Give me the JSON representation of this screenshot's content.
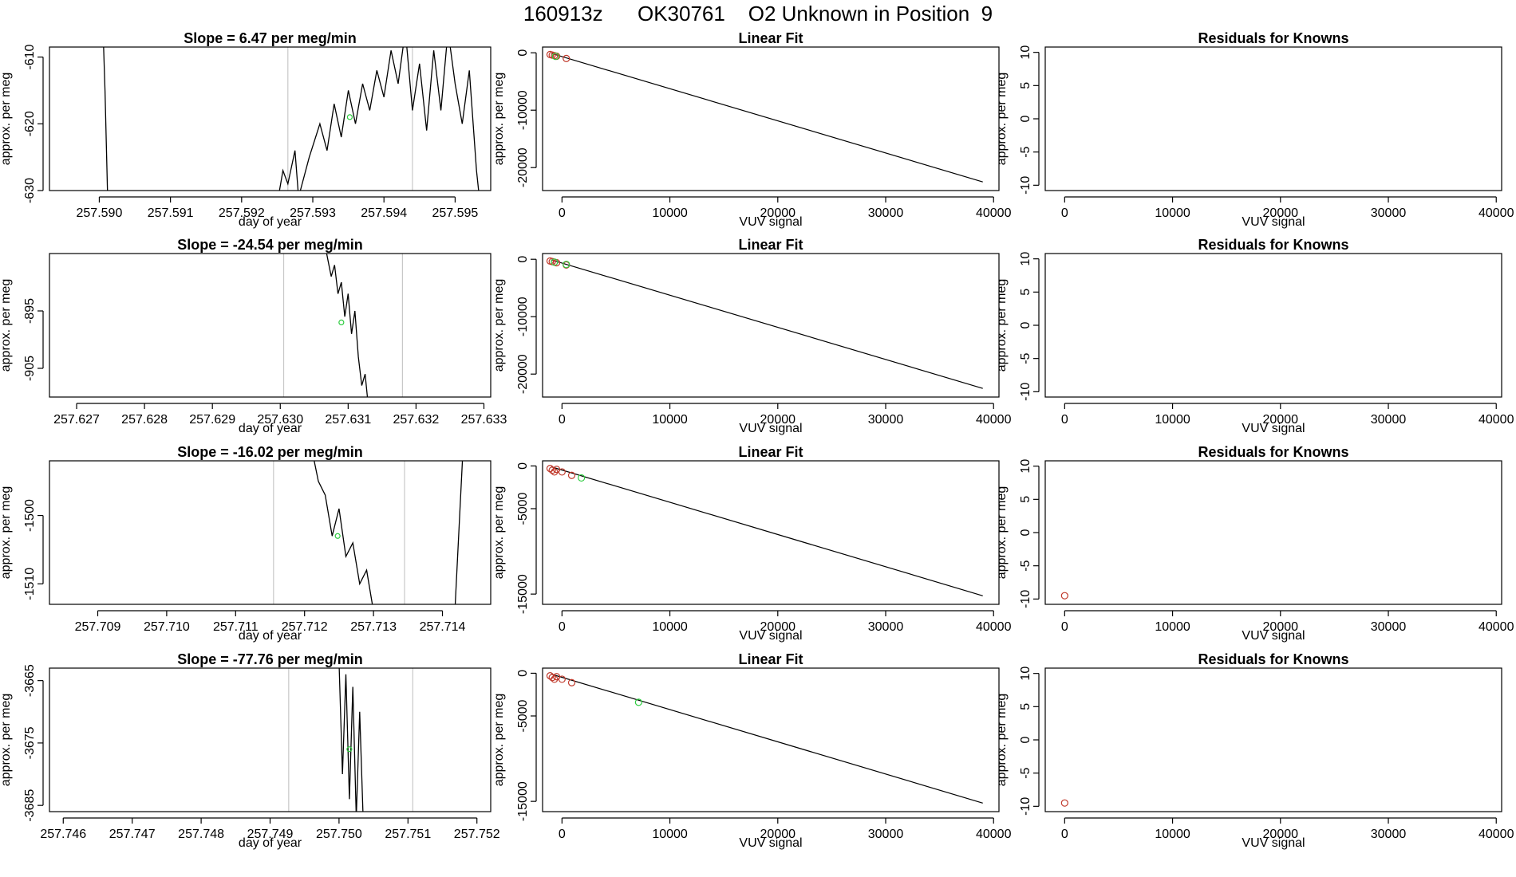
{
  "figure_title": "160913z      OK30761    O2 Unknown in Position  9",
  "colors": {
    "line": "#000000",
    "known": "#c0392b",
    "unknown": "#2ecc40",
    "gridline": "#c8c8c8"
  },
  "chart_data": [
    {
      "type": "line",
      "title": "Slope =  6.47  per meg/min",
      "xlabel": "day of year",
      "ylabel": "approx. per meg",
      "xlim": [
        257.5893,
        257.5955
      ],
      "ylim": [
        -630,
        -608.5
      ],
      "xticks": [
        "257.590",
        "257.591",
        "257.592",
        "257.593",
        "257.594",
        "257.595"
      ],
      "xtick_values": [
        257.59,
        257.591,
        257.592,
        257.593,
        257.594,
        257.595
      ],
      "yticks": [
        "-610",
        "-620",
        "-630"
      ],
      "ytick_values": [
        -610,
        -620,
        -630
      ],
      "vlines": [
        257.59265,
        257.5944
      ],
      "series": [
        {
          "x": [
            257.59005,
            257.59008,
            257.59012,
            257.5925,
            257.59258,
            257.59265,
            257.59275,
            257.5928,
            257.59295,
            257.5931,
            257.5932,
            257.5933,
            257.5934,
            257.5935,
            257.5936,
            257.5937,
            257.5938,
            257.5939,
            257.594,
            257.5941,
            257.5942,
            257.5943,
            257.5944,
            257.5945,
            257.5946,
            257.5947,
            257.5948,
            257.5949,
            257.595,
            257.5951,
            257.5952,
            257.5953,
            257.59535
          ],
          "y": [
            -605,
            -615,
            -632,
            -632,
            -627,
            -629,
            -624,
            -631,
            -625,
            -620,
            -624,
            -617,
            -622,
            -615,
            -620,
            -614,
            -618,
            -612,
            -616,
            -609,
            -614,
            -606,
            -618,
            -611,
            -621,
            -609,
            -618,
            -606,
            -614,
            -620,
            -612,
            -627,
            -632
          ]
        }
      ],
      "marker": {
        "x": 257.59352,
        "y": -619
      }
    },
    {
      "type": "line",
      "title": "Slope =  -24.54  per meg/min",
      "xlabel": "day of year",
      "ylabel": "approx. per meg",
      "xlim": [
        257.6266,
        257.6331
      ],
      "ylim": [
        -910,
        -885
      ],
      "xticks": [
        "257.627",
        "257.628",
        "257.629",
        "257.630",
        "257.631",
        "257.632",
        "257.633"
      ],
      "xtick_values": [
        257.627,
        257.628,
        257.629,
        257.63,
        257.631,
        257.632,
        257.633
      ],
      "yticks": [
        "-895",
        "-905"
      ],
      "ytick_values": [
        -895,
        -905
      ],
      "vlines": [
        257.63005,
        257.6318
      ],
      "series": [
        {
          "x": [
            257.63065,
            257.6307,
            257.63075,
            257.6308,
            257.63085,
            257.6309,
            257.63095,
            257.631,
            257.63105,
            257.6311,
            257.63115,
            257.6312,
            257.63125,
            257.6313
          ],
          "y": [
            -883,
            -886,
            -889,
            -887,
            -892,
            -890,
            -896,
            -892,
            -899,
            -895,
            -903,
            -908,
            -906,
            -912
          ]
        }
      ],
      "marker": {
        "x": 257.6309,
        "y": -897
      }
    },
    {
      "type": "line",
      "title": "Slope =  -16.02  per meg/min",
      "xlabel": "day of year",
      "ylabel": "approx. per meg",
      "xlim": [
        257.7083,
        257.7147
      ],
      "ylim": [
        -1513,
        -1492
      ],
      "xticks": [
        "257.709",
        "257.710",
        "257.711",
        "257.712",
        "257.713",
        "257.714"
      ],
      "xtick_values": [
        257.709,
        257.71,
        257.711,
        257.712,
        257.713,
        257.714
      ],
      "yticks": [
        "-1500",
        "-1510"
      ],
      "ytick_values": [
        -1500,
        -1510
      ],
      "vlines": [
        257.71155,
        257.71345
      ],
      "series": [
        {
          "x": [
            257.7121,
            257.7122,
            257.7123,
            257.7124,
            257.7125,
            257.7126,
            257.7127,
            257.7128,
            257.7129,
            257.713
          ],
          "y": [
            -1490,
            -1495,
            -1497,
            -1503,
            -1499,
            -1506,
            -1504,
            -1510,
            -1508,
            -1514
          ]
        },
        {
          "x": [
            257.71418,
            257.71425,
            257.7143
          ],
          "y": [
            -1514,
            -1500,
            -1490
          ]
        }
      ],
      "marker": {
        "x": 257.71248,
        "y": -1503
      }
    },
    {
      "type": "line",
      "title": "Slope =  -77.76  per meg/min",
      "xlabel": "day of year",
      "ylabel": "approx. per meg",
      "xlim": [
        257.7458,
        257.7522
      ],
      "ylim": [
        -3686,
        -3663
      ],
      "xticks": [
        "257.746",
        "257.747",
        "257.748",
        "257.749",
        "257.750",
        "257.751",
        "257.752"
      ],
      "xtick_values": [
        257.746,
        257.747,
        257.748,
        257.749,
        257.75,
        257.751,
        257.752
      ],
      "yticks": [
        "-3665",
        "-3675",
        "-3685"
      ],
      "ytick_values": [
        -3665,
        -3675,
        -3685
      ],
      "vlines": [
        257.74927,
        257.75107
      ],
      "series": [
        {
          "x": [
            257.75,
            257.75005,
            257.7501,
            257.75015,
            257.7502,
            257.75025,
            257.7503,
            257.75035
          ],
          "y": [
            -3662,
            -3680,
            -3664,
            -3684,
            -3666,
            -3687,
            -3670,
            -3687
          ]
        }
      ],
      "marker": {
        "x": 257.75015,
        "y": -3676
      }
    },
    {
      "type": "scatter",
      "title": "Linear Fit",
      "xlabel": "VUV signal",
      "ylabel": "approx. per meg",
      "xlim": [
        -1800,
        40500
      ],
      "ylim": [
        -24000,
        1000
      ],
      "xticks": [
        "0",
        "10000",
        "20000",
        "30000",
        "40000"
      ],
      "xtick_values": [
        0,
        10000,
        20000,
        30000,
        40000
      ],
      "yticks": [
        "0",
        "-10000",
        "-20000"
      ],
      "ytick_values": [
        0,
        -10000,
        -20000
      ],
      "fit_line": {
        "x": [
          -1000,
          39000
        ],
        "y": [
          -100,
          -22500
        ]
      },
      "known_points": {
        "x": [
          -1100,
          -900,
          -700,
          -500,
          400
        ],
        "y": [
          -300,
          -400,
          -500,
          -600,
          -1000
        ]
      },
      "unknown_points": {
        "x": [
          -600
        ],
        "y": [
          -620
        ]
      }
    },
    {
      "type": "scatter",
      "title": "Linear Fit",
      "xlabel": "VUV signal",
      "ylabel": "approx. per meg",
      "xlim": [
        -1800,
        40500
      ],
      "ylim": [
        -24000,
        1000
      ],
      "xticks": [
        "0",
        "10000",
        "20000",
        "30000",
        "40000"
      ],
      "xtick_values": [
        0,
        10000,
        20000,
        30000,
        40000
      ],
      "yticks": [
        "0",
        "-10000",
        "-20000"
      ],
      "ytick_values": [
        0,
        -10000,
        -20000
      ],
      "fit_line": {
        "x": [
          -1000,
          39000
        ],
        "y": [
          -100,
          -22500
        ]
      },
      "known_points": {
        "x": [
          -1100,
          -900,
          -700,
          -500,
          400
        ],
        "y": [
          -300,
          -400,
          -500,
          -600,
          -1000
        ]
      },
      "unknown_points": {
        "x": [
          -700,
          400
        ],
        "y": [
          -500,
          -900
        ]
      }
    },
    {
      "type": "scatter",
      "title": "Linear Fit",
      "xlabel": "VUV signal",
      "ylabel": "approx. per meg",
      "xlim": [
        -1800,
        40500
      ],
      "ylim": [
        -16200,
        600
      ],
      "xticks": [
        "0",
        "10000",
        "20000",
        "30000",
        "40000"
      ],
      "xtick_values": [
        0,
        10000,
        20000,
        30000,
        40000
      ],
      "yticks": [
        "0",
        "-5000",
        "-15000"
      ],
      "ytick_values": [
        0,
        -5000,
        -15000
      ],
      "fit_line": {
        "x": [
          -1000,
          39000
        ],
        "y": [
          -100,
          -15200
        ]
      },
      "known_points": {
        "x": [
          -1100,
          -900,
          -700,
          -500,
          0,
          900
        ],
        "y": [
          -300,
          -500,
          -700,
          -400,
          -700,
          -1100
        ]
      },
      "unknown_points": {
        "x": [
          1800
        ],
        "y": [
          -1400
        ]
      }
    },
    {
      "type": "scatter",
      "title": "Linear Fit",
      "xlabel": "VUV signal",
      "ylabel": "approx. per meg",
      "xlim": [
        -1800,
        40500
      ],
      "ylim": [
        -16200,
        600
      ],
      "xticks": [
        "0",
        "10000",
        "20000",
        "30000",
        "40000"
      ],
      "xtick_values": [
        0,
        10000,
        20000,
        30000,
        40000
      ],
      "yticks": [
        "0",
        "-5000",
        "-15000"
      ],
      "ytick_values": [
        0,
        -5000,
        -15000
      ],
      "fit_line": {
        "x": [
          -1000,
          39000
        ],
        "y": [
          -100,
          -15200
        ]
      },
      "known_points": {
        "x": [
          -1100,
          -900,
          -700,
          -500,
          0,
          900
        ],
        "y": [
          -300,
          -500,
          -700,
          -400,
          -700,
          -1100
        ]
      },
      "unknown_points": {
        "x": [
          7100
        ],
        "y": [
          -3400
        ]
      }
    },
    {
      "type": "scatter",
      "title": "Residuals for Knowns",
      "xlabel": "VUV signal",
      "ylabel": "approx. per meg",
      "xlim": [
        -1800,
        40500
      ],
      "ylim": [
        -10.8,
        10.8
      ],
      "xticks": [
        "0",
        "10000",
        "20000",
        "30000",
        "40000"
      ],
      "xtick_values": [
        0,
        10000,
        20000,
        30000,
        40000
      ],
      "yticks": [
        "10",
        "5",
        "0",
        "-5",
        "-10"
      ],
      "ytick_values": [
        10,
        5,
        0,
        -5,
        -10
      ],
      "known_points": {
        "x": [],
        "y": []
      }
    },
    {
      "type": "scatter",
      "title": "Residuals for Knowns",
      "xlabel": "VUV signal",
      "ylabel": "approx. per meg",
      "xlim": [
        -1800,
        40500
      ],
      "ylim": [
        -10.8,
        10.8
      ],
      "xticks": [
        "0",
        "10000",
        "20000",
        "30000",
        "40000"
      ],
      "xtick_values": [
        0,
        10000,
        20000,
        30000,
        40000
      ],
      "yticks": [
        "10",
        "5",
        "0",
        "-5",
        "-10"
      ],
      "ytick_values": [
        10,
        5,
        0,
        -5,
        -10
      ],
      "known_points": {
        "x": [],
        "y": []
      }
    },
    {
      "type": "scatter",
      "title": "Residuals for Knowns",
      "xlabel": "VUV signal",
      "ylabel": "approx. per meg",
      "xlim": [
        -1800,
        40500
      ],
      "ylim": [
        -10.8,
        10.8
      ],
      "xticks": [
        "0",
        "10000",
        "20000",
        "30000",
        "40000"
      ],
      "xtick_values": [
        0,
        10000,
        20000,
        30000,
        40000
      ],
      "yticks": [
        "10",
        "5",
        "0",
        "-5",
        "-10"
      ],
      "ytick_values": [
        10,
        5,
        0,
        -5,
        -10
      ],
      "known_points": {
        "x": [
          0
        ],
        "y": [
          -9.5
        ]
      }
    },
    {
      "type": "scatter",
      "title": "Residuals for Knowns",
      "xlabel": "VUV signal",
      "ylabel": "approx. per meg",
      "xlim": [
        -1800,
        40500
      ],
      "ylim": [
        -10.8,
        10.8
      ],
      "xticks": [
        "0",
        "10000",
        "20000",
        "30000",
        "40000"
      ],
      "xtick_values": [
        0,
        10000,
        20000,
        30000,
        40000
      ],
      "yticks": [
        "10",
        "5",
        "0",
        "-5",
        "-10"
      ],
      "ytick_values": [
        10,
        5,
        0,
        -5,
        -10
      ],
      "known_points": {
        "x": [
          0
        ],
        "y": [
          -9.5
        ]
      }
    }
  ]
}
